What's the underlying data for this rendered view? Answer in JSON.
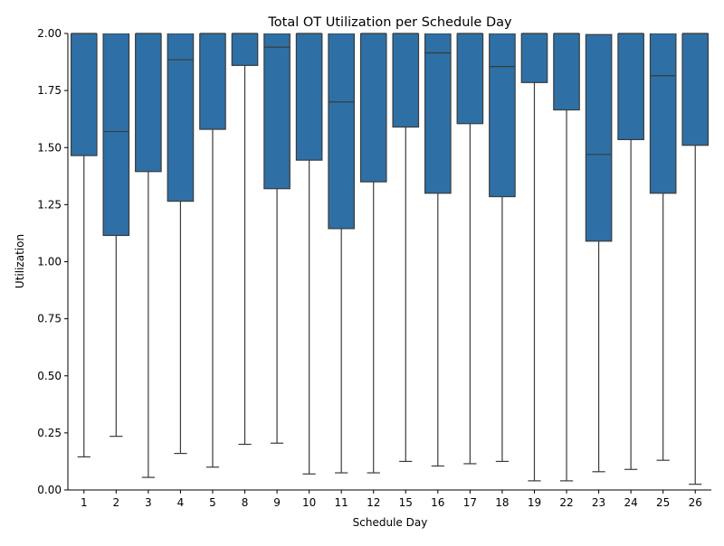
{
  "chart_data": {
    "type": "box",
    "title": "Total OT Utilization per Schedule Day",
    "xlabel": "Schedule Day",
    "ylabel": "Utilization",
    "ylim": [
      0,
      2
    ],
    "yticks": [
      "0.00",
      "0.25",
      "0.50",
      "0.75",
      "1.00",
      "1.25",
      "1.50",
      "1.75",
      "2.00"
    ],
    "categories": [
      "1",
      "2",
      "3",
      "4",
      "5",
      "8",
      "9",
      "10",
      "11",
      "12",
      "15",
      "16",
      "17",
      "18",
      "19",
      "22",
      "23",
      "24",
      "25",
      "26"
    ],
    "boxes": [
      {
        "q1": 1.465,
        "median": 2.0,
        "q3": 2.0,
        "whisker_low": 0.145
      },
      {
        "q1": 1.115,
        "median": 1.57,
        "q3": 2.0,
        "whisker_low": 0.235
      },
      {
        "q1": 1.395,
        "median": 2.0,
        "q3": 2.0,
        "whisker_low": 0.055
      },
      {
        "q1": 1.265,
        "median": 1.885,
        "q3": 2.0,
        "whisker_low": 0.16
      },
      {
        "q1": 1.58,
        "median": 2.0,
        "q3": 2.0,
        "whisker_low": 0.1
      },
      {
        "q1": 1.86,
        "median": 2.0,
        "q3": 2.0,
        "whisker_low": 0.2
      },
      {
        "q1": 1.32,
        "median": 1.94,
        "q3": 2.0,
        "whisker_low": 0.205
      },
      {
        "q1": 1.445,
        "median": 2.0,
        "q3": 2.0,
        "whisker_low": 0.07
      },
      {
        "q1": 1.145,
        "median": 1.7,
        "q3": 2.0,
        "whisker_low": 0.075
      },
      {
        "q1": 1.35,
        "median": 2.0,
        "q3": 2.0,
        "whisker_low": 0.075
      },
      {
        "q1": 1.59,
        "median": 2.0,
        "q3": 2.0,
        "whisker_low": 0.125
      },
      {
        "q1": 1.3,
        "median": 1.915,
        "q3": 2.0,
        "whisker_low": 0.105
      },
      {
        "q1": 1.605,
        "median": 2.0,
        "q3": 2.0,
        "whisker_low": 0.115
      },
      {
        "q1": 1.285,
        "median": 1.855,
        "q3": 2.0,
        "whisker_low": 0.125
      },
      {
        "q1": 1.785,
        "median": 2.0,
        "q3": 2.0,
        "whisker_low": 0.04
      },
      {
        "q1": 1.665,
        "median": 2.0,
        "q3": 2.0,
        "whisker_low": 0.04
      },
      {
        "q1": 1.09,
        "median": 1.47,
        "q3": 1.995,
        "whisker_low": 0.08
      },
      {
        "q1": 1.535,
        "median": 2.0,
        "q3": 2.0,
        "whisker_low": 0.09
      },
      {
        "q1": 1.3,
        "median": 1.815,
        "q3": 2.0,
        "whisker_low": 0.13
      },
      {
        "q1": 1.51,
        "median": 2.0,
        "q3": 2.0,
        "whisker_low": 0.025
      }
    ],
    "colors": {
      "box_fill": "#2e70a5",
      "line": "#3b3b3b",
      "axis": "#000000"
    },
    "grid": false,
    "legend": "none"
  }
}
